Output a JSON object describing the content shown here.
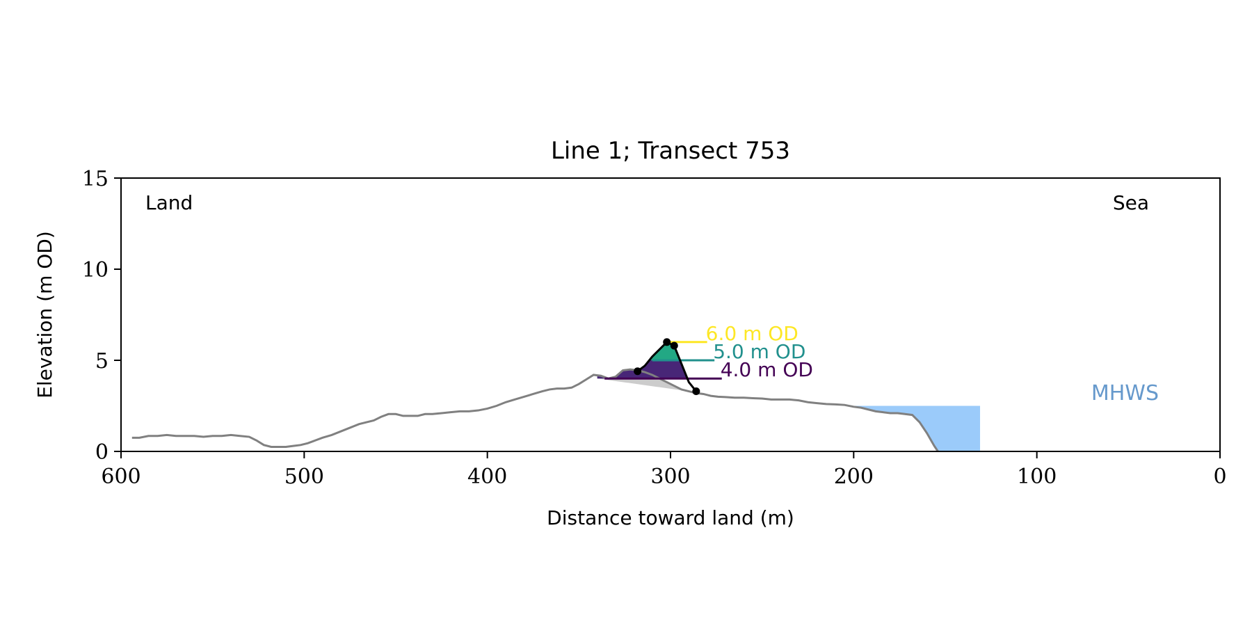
{
  "chart_data": {
    "type": "line",
    "title": "Line 1; Transect 753",
    "xlabel": "Distance toward land (m)",
    "ylabel": "Elevation (m OD)",
    "xlim": [
      600,
      0
    ],
    "ylim": [
      0,
      15
    ],
    "x_ticks": [
      600,
      500,
      400,
      300,
      200,
      100,
      0
    ],
    "y_ticks": [
      0,
      5,
      10,
      15
    ],
    "grid": false,
    "corner_labels": {
      "left": "Land",
      "right": "Sea"
    },
    "colors": {
      "profile": "#808080",
      "dune_fill_shadow": "#cccccc",
      "band_low": "#440154",
      "band_mid": "#21908d",
      "band_high": "#fde725",
      "crest_line": "#000000",
      "mhws_fill": "#9bcbfa",
      "mhws_text": "#6699cc"
    },
    "profile": {
      "x": [
        594,
        590,
        585,
        580,
        575,
        570,
        565,
        560,
        555,
        550,
        545,
        540,
        535,
        530,
        526,
        522,
        518,
        514,
        510,
        506,
        502,
        498,
        494,
        490,
        485,
        480,
        475,
        470,
        466,
        462,
        458,
        454,
        450,
        446,
        442,
        438,
        434,
        430,
        425,
        420,
        415,
        410,
        405,
        400,
        395,
        390,
        385,
        380,
        375,
        370,
        366,
        362,
        358,
        354,
        350,
        346,
        342,
        338,
        334,
        330,
        326,
        322,
        318,
        314,
        310,
        306,
        302,
        298,
        294,
        290,
        286,
        282,
        278,
        274,
        270,
        265,
        260,
        255,
        250,
        245,
        240,
        235,
        230,
        225,
        220,
        215,
        210,
        205,
        200,
        196,
        192,
        188,
        184,
        180,
        176,
        172,
        168,
        164,
        160,
        156,
        154
      ],
      "y": [
        0.75,
        0.75,
        0.85,
        0.85,
        0.9,
        0.85,
        0.85,
        0.85,
        0.8,
        0.85,
        0.85,
        0.9,
        0.85,
        0.8,
        0.6,
        0.35,
        0.25,
        0.25,
        0.25,
        0.3,
        0.35,
        0.45,
        0.6,
        0.75,
        0.9,
        1.1,
        1.3,
        1.5,
        1.6,
        1.7,
        1.9,
        2.05,
        2.05,
        1.95,
        1.95,
        1.95,
        2.05,
        2.05,
        2.1,
        2.15,
        2.2,
        2.2,
        2.25,
        2.35,
        2.5,
        2.7,
        2.85,
        3.0,
        3.15,
        3.3,
        3.4,
        3.45,
        3.45,
        3.5,
        3.7,
        3.95,
        4.2,
        4.15,
        4.0,
        4.1,
        4.45,
        4.5,
        4.45,
        4.35,
        4.2,
        4.0,
        3.8,
        3.6,
        3.4,
        3.3,
        3.2,
        3.15,
        3.05,
        3.0,
        2.98,
        2.95,
        2.95,
        2.92,
        2.9,
        2.85,
        2.85,
        2.85,
        2.8,
        2.7,
        2.65,
        2.6,
        2.58,
        2.55,
        2.45,
        2.4,
        2.3,
        2.2,
        2.15,
        2.1,
        2.1,
        2.05,
        2.0,
        1.6,
        1.0,
        0.3,
        0.0
      ]
    },
    "dune_crest": {
      "x": [
        318,
        314,
        310,
        306,
        302,
        298,
        294,
        290,
        286
      ],
      "y": [
        4.4,
        4.7,
        5.2,
        5.6,
        6.0,
        5.8,
        4.8,
        3.8,
        3.3
      ]
    },
    "markers": {
      "x": [
        318,
        302,
        298,
        286
      ],
      "y": [
        4.4,
        6.0,
        5.8,
        3.3
      ]
    },
    "elevation_bands": [
      {
        "level": 4.0,
        "label": "4.0 m OD",
        "color": "#440154",
        "x_start": 336,
        "x_end": 272
      },
      {
        "level": 5.0,
        "label": "5.0 m OD",
        "color": "#21908d",
        "x_start": 310,
        "x_end": 276
      },
      {
        "level": 6.0,
        "label": "6.0 m OD",
        "color": "#fde725",
        "x_start": 300,
        "x_end": 280
      }
    ],
    "mhws": {
      "label": "MHWS",
      "level": 2.5,
      "x_start": 200,
      "x_end": 131
    }
  }
}
